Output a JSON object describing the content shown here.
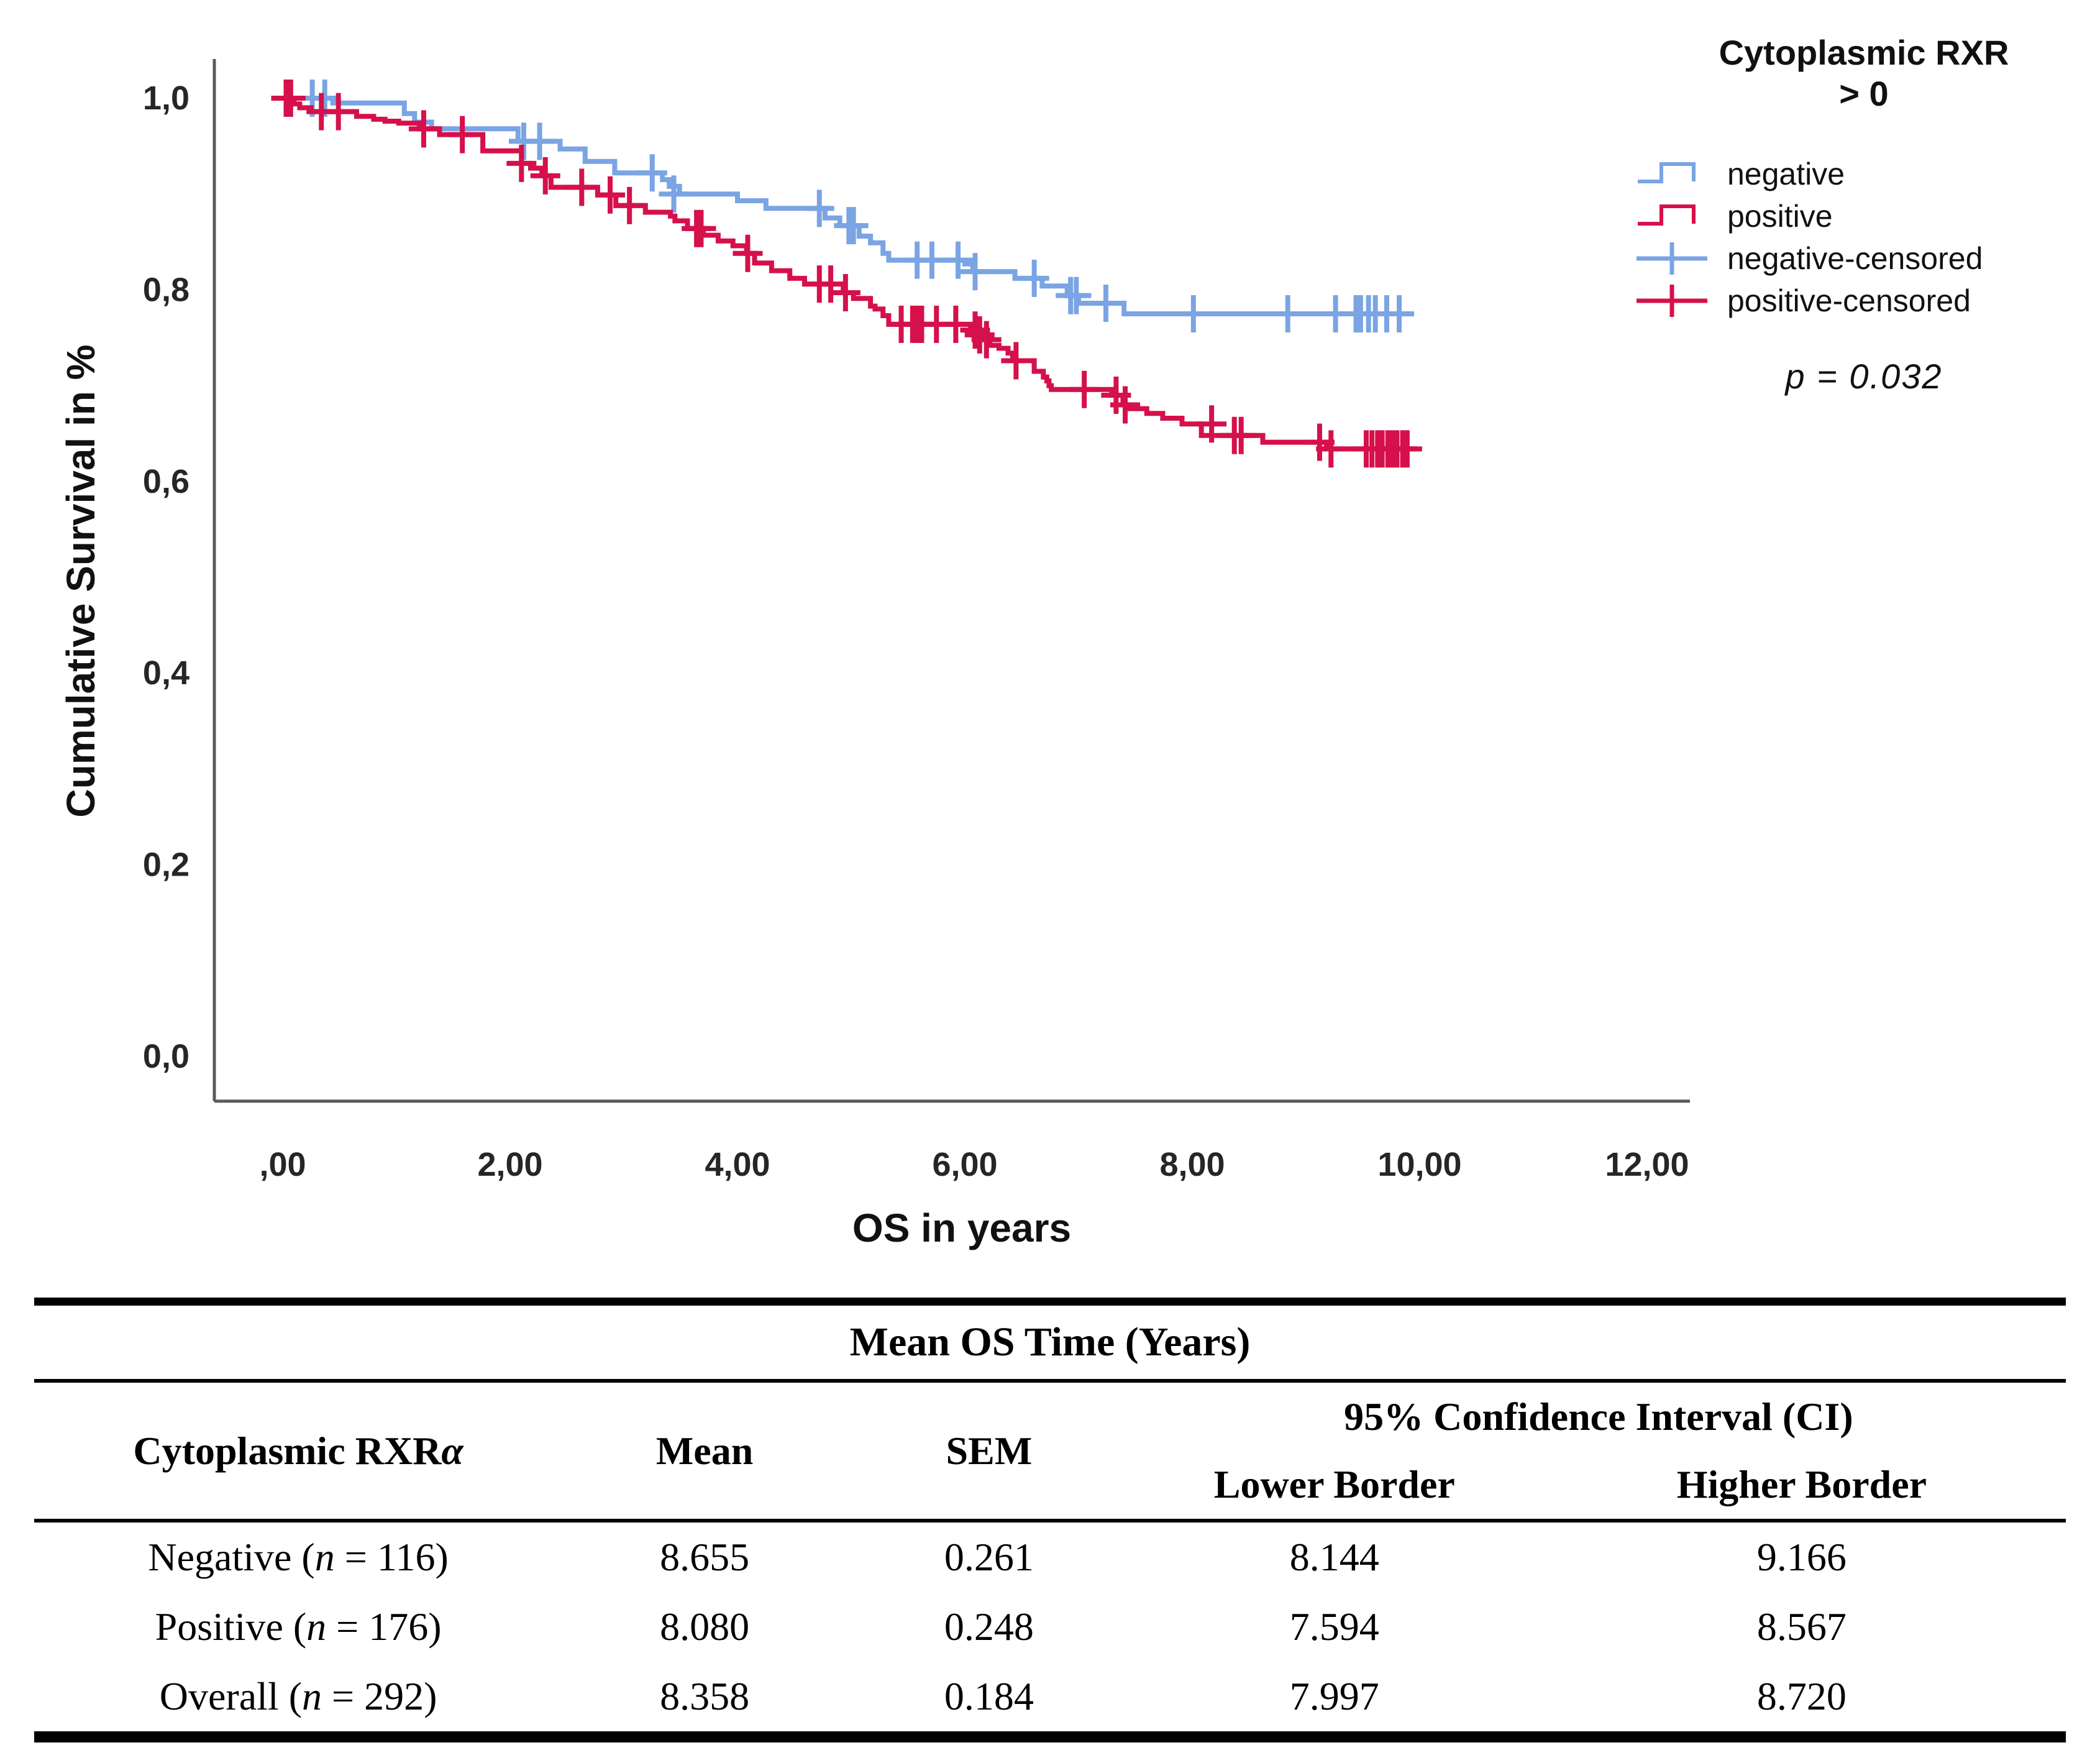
{
  "colors": {
    "negative": "#7AA4E3",
    "positive": "#D5104A",
    "axis": "#5a5a5a",
    "text": "#1a1a1a"
  },
  "chart": {
    "y_axis_title": "Cumulative Survival in %",
    "x_axis_title": "OS in years",
    "x_ticks": [
      {
        "label": ",00",
        "value": 0
      },
      {
        "label": "2,00",
        "value": 2
      },
      {
        "label": "4,00",
        "value": 4
      },
      {
        "label": "6,00",
        "value": 6
      },
      {
        "label": "8,00",
        "value": 8
      },
      {
        "label": "10,00",
        "value": 10
      },
      {
        "label": "12,00",
        "value": 12
      }
    ],
    "y_ticks": [
      {
        "label": "0,0",
        "value": 0.0
      },
      {
        "label": "0,2",
        "value": 0.2
      },
      {
        "label": "0,4",
        "value": 0.4
      },
      {
        "label": "0,6",
        "value": 0.6
      },
      {
        "label": "0,8",
        "value": 0.8
      },
      {
        "label": "1,0",
        "value": 1.0
      }
    ]
  },
  "legend": {
    "title_line1": "Cytoplasmic RXR",
    "title_line2": "> 0",
    "items": [
      {
        "label": "negative",
        "glyph": "step",
        "series": "negative"
      },
      {
        "label": "positive",
        "glyph": "step",
        "series": "positive"
      },
      {
        "label": "negative-censored",
        "glyph": "censor",
        "series": "negative"
      },
      {
        "label": "positive-censored",
        "glyph": "censor",
        "series": "positive"
      }
    ],
    "p_value": "p = 0.032"
  },
  "chart_data": {
    "type": "km_step",
    "title": "",
    "xlabel": "OS in years",
    "ylabel": "Cumulative Survival in %",
    "xlim": [
      0,
      12.4
    ],
    "ylim": [
      0,
      1.0
    ],
    "grid": false,
    "legend_position": "right",
    "series": [
      {
        "name": "negative",
        "color_key": "negative",
        "end_t": 9.82,
        "steps": [
          [
            0,
            1.0
          ],
          [
            0.44,
            0.995
          ],
          [
            1.07,
            0.984
          ],
          [
            1.16,
            0.975
          ],
          [
            1.31,
            0.968
          ],
          [
            2.07,
            0.955
          ],
          [
            2.44,
            0.947
          ],
          [
            2.66,
            0.934
          ],
          [
            2.92,
            0.922
          ],
          [
            3.34,
            0.915
          ],
          [
            3.4,
            0.908
          ],
          [
            3.49,
            0.9
          ],
          [
            4.0,
            0.893
          ],
          [
            4.25,
            0.885
          ],
          [
            4.77,
            0.875
          ],
          [
            4.9,
            0.867
          ],
          [
            5.07,
            0.856
          ],
          [
            5.17,
            0.849
          ],
          [
            5.28,
            0.838
          ],
          [
            5.33,
            0.831
          ],
          [
            6.0,
            0.827
          ],
          [
            6.07,
            0.819
          ],
          [
            6.44,
            0.812
          ],
          [
            6.68,
            0.804
          ],
          [
            6.9,
            0.794
          ],
          [
            7.0,
            0.786
          ],
          [
            7.4,
            0.775
          ]
        ],
        "censors": [
          [
            0.26,
            1.0
          ],
          [
            0.37,
            1.0
          ],
          [
            2.12,
            0.955
          ],
          [
            2.26,
            0.955
          ],
          [
            3.25,
            0.922
          ],
          [
            3.44,
            0.9
          ],
          [
            4.72,
            0.885
          ],
          [
            4.98,
            0.867
          ],
          [
            5.02,
            0.867
          ],
          [
            5.58,
            0.831
          ],
          [
            5.71,
            0.831
          ],
          [
            5.94,
            0.831
          ],
          [
            6.09,
            0.819
          ],
          [
            6.61,
            0.812
          ],
          [
            6.93,
            0.794
          ],
          [
            6.98,
            0.794
          ],
          [
            7.24,
            0.786
          ],
          [
            8.01,
            0.775
          ],
          [
            8.84,
            0.775
          ],
          [
            9.26,
            0.775
          ],
          [
            9.44,
            0.775
          ],
          [
            9.48,
            0.775
          ],
          [
            9.55,
            0.775
          ],
          [
            9.61,
            0.775
          ],
          [
            9.71,
            0.775
          ],
          [
            9.82,
            0.775
          ]
        ]
      },
      {
        "name": "positive",
        "color_key": "positive",
        "end_t": 9.97,
        "steps": [
          [
            0,
            1.0
          ],
          [
            0.1,
            0.994
          ],
          [
            0.15,
            0.99
          ],
          [
            0.25,
            0.986
          ],
          [
            0.65,
            0.981
          ],
          [
            0.8,
            0.978
          ],
          [
            0.9,
            0.976
          ],
          [
            1.02,
            0.974
          ],
          [
            1.2,
            0.968
          ],
          [
            1.38,
            0.962
          ],
          [
            1.76,
            0.945
          ],
          [
            2.1,
            0.932
          ],
          [
            2.18,
            0.927
          ],
          [
            2.28,
            0.919
          ],
          [
            2.36,
            0.907
          ],
          [
            2.77,
            0.899
          ],
          [
            2.93,
            0.888
          ],
          [
            3.19,
            0.881
          ],
          [
            3.41,
            0.877
          ],
          [
            3.45,
            0.872
          ],
          [
            3.56,
            0.864
          ],
          [
            3.7,
            0.857
          ],
          [
            3.83,
            0.851
          ],
          [
            3.96,
            0.846
          ],
          [
            4.08,
            0.838
          ],
          [
            4.15,
            0.828
          ],
          [
            4.3,
            0.82
          ],
          [
            4.46,
            0.812
          ],
          [
            4.59,
            0.806
          ],
          [
            4.93,
            0.797
          ],
          [
            5.02,
            0.791
          ],
          [
            5.17,
            0.783
          ],
          [
            5.21,
            0.78
          ],
          [
            5.28,
            0.773
          ],
          [
            5.33,
            0.764
          ],
          [
            6.05,
            0.758
          ],
          [
            6.1,
            0.753
          ],
          [
            6.16,
            0.748
          ],
          [
            6.22,
            0.742
          ],
          [
            6.3,
            0.739
          ],
          [
            6.38,
            0.734
          ],
          [
            6.42,
            0.726
          ],
          [
            6.61,
            0.715
          ],
          [
            6.69,
            0.709
          ],
          [
            6.72,
            0.705
          ],
          [
            6.74,
            0.7
          ],
          [
            6.76,
            0.696
          ],
          [
            7.29,
            0.69
          ],
          [
            7.39,
            0.68
          ],
          [
            7.45,
            0.676
          ],
          [
            7.6,
            0.671
          ],
          [
            7.74,
            0.666
          ],
          [
            7.91,
            0.66
          ],
          [
            8.08,
            0.648
          ],
          [
            8.62,
            0.641
          ],
          [
            9.18,
            0.634
          ]
        ],
        "censors": [
          [
            0.03,
            1.0
          ],
          [
            0.07,
            1.0
          ],
          [
            0.34,
            0.986
          ],
          [
            0.49,
            0.986
          ],
          [
            1.24,
            0.968
          ],
          [
            1.58,
            0.962
          ],
          [
            2.1,
            0.932
          ],
          [
            2.31,
            0.919
          ],
          [
            2.63,
            0.907
          ],
          [
            2.88,
            0.899
          ],
          [
            3.05,
            0.888
          ],
          [
            3.64,
            0.864
          ],
          [
            3.68,
            0.864
          ],
          [
            4.09,
            0.838
          ],
          [
            4.72,
            0.806
          ],
          [
            4.82,
            0.806
          ],
          [
            4.95,
            0.797
          ],
          [
            5.44,
            0.764
          ],
          [
            5.54,
            0.764
          ],
          [
            5.58,
            0.764
          ],
          [
            5.62,
            0.764
          ],
          [
            5.75,
            0.764
          ],
          [
            5.92,
            0.764
          ],
          [
            6.09,
            0.758
          ],
          [
            6.13,
            0.753
          ],
          [
            6.19,
            0.748
          ],
          [
            6.45,
            0.726
          ],
          [
            7.05,
            0.696
          ],
          [
            7.33,
            0.69
          ],
          [
            7.41,
            0.68
          ],
          [
            8.17,
            0.66
          ],
          [
            8.37,
            0.648
          ],
          [
            8.43,
            0.648
          ],
          [
            9.12,
            0.641
          ],
          [
            9.22,
            0.634
          ],
          [
            9.53,
            0.634
          ],
          [
            9.58,
            0.634
          ],
          [
            9.63,
            0.634
          ],
          [
            9.67,
            0.634
          ],
          [
            9.72,
            0.634
          ],
          [
            9.76,
            0.634
          ],
          [
            9.8,
            0.634
          ],
          [
            9.85,
            0.634
          ],
          [
            9.89,
            0.634
          ]
        ]
      }
    ],
    "annotations": [
      "p = 0.032"
    ]
  },
  "table": {
    "title": "Mean OS Time (Years)",
    "headers": {
      "group_main": "Cytoplasmic RXR",
      "group_alpha": "α",
      "mean": "Mean",
      "sem": "SEM",
      "ci": "95% Confidence Interval (CI)",
      "ci_lower": "Lower Border",
      "ci_higher": "Higher Border"
    },
    "rows": [
      {
        "label_prefix": "Negative (",
        "n": "n",
        "label_suffix": " = 116)",
        "mean": "8.655",
        "sem": "0.261",
        "lower": "8.144",
        "higher": "9.166"
      },
      {
        "label_prefix": "Positive (",
        "n": "n",
        "label_suffix": " = 176)",
        "mean": "8.080",
        "sem": "0.248",
        "lower": "7.594",
        "higher": "8.567"
      },
      {
        "label_prefix": "Overall (",
        "n": "n",
        "label_suffix": " = 292)",
        "mean": "8.358",
        "sem": "0.184",
        "lower": "7.997",
        "higher": "8.720"
      }
    ]
  }
}
